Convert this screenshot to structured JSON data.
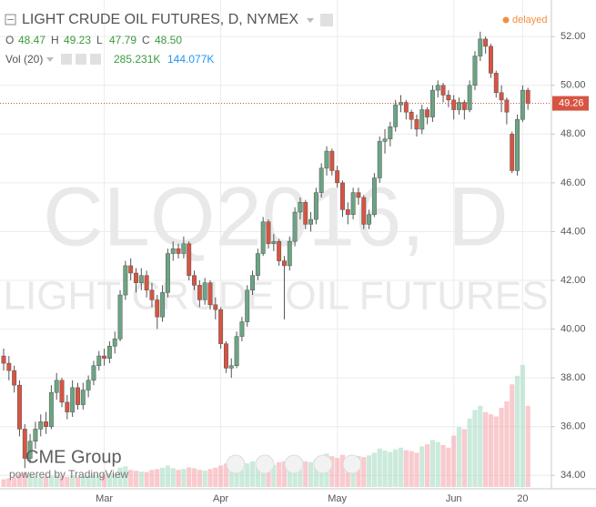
{
  "chart_data": {
    "type": "candlestick",
    "title": "LIGHT CRUDE OIL FUTURES, D, NYMEX",
    "status": "delayed",
    "watermark": [
      "CLQ2016, D",
      "LIGHT CRUDE OIL FUTURES"
    ],
    "branding": [
      "CME Group",
      "powered by TradingView"
    ],
    "legend_labels": [
      "O",
      "H",
      "L",
      "C"
    ],
    "legend_values": [
      48.47,
      49.23,
      47.79,
      48.5
    ],
    "legend_value_labels": [
      "48.47",
      "49.23",
      "47.79",
      "48.50"
    ],
    "volume_label": "Vol (20)",
    "volume_legend_values": [
      285.231,
      144.077
    ],
    "volume_legend_value_labels": [
      "285.231K",
      "144.077K"
    ],
    "last_price": 49.26,
    "up_color": "#6ba583",
    "down_color": "#d75442",
    "grid": true,
    "ylim": [
      33.45,
      53.5
    ],
    "yticks": [
      {
        "value": 34,
        "label": "34.00"
      },
      {
        "value": 36,
        "label": "36.00"
      },
      {
        "value": 38,
        "label": "38.00"
      },
      {
        "value": 40,
        "label": "40.00"
      },
      {
        "value": 42,
        "label": "42.00"
      },
      {
        "value": 44,
        "label": "44.00"
      },
      {
        "value": 46,
        "label": "46.00"
      },
      {
        "value": 48,
        "label": "48.00"
      },
      {
        "value": 50,
        "label": "50.00"
      },
      {
        "value": 52,
        "label": "52.00"
      }
    ],
    "categories": [
      null,
      null,
      null,
      null,
      null,
      null,
      null,
      null,
      null,
      null,
      null,
      null,
      null,
      null,
      null,
      null,
      null,
      null,
      null,
      "Mar",
      null,
      null,
      null,
      null,
      null,
      null,
      null,
      null,
      null,
      null,
      null,
      null,
      null,
      null,
      null,
      null,
      null,
      null,
      null,
      null,
      null,
      "Apr",
      null,
      null,
      null,
      null,
      null,
      null,
      null,
      null,
      null,
      null,
      null,
      null,
      null,
      null,
      null,
      null,
      null,
      null,
      null,
      null,
      null,
      "May",
      null,
      null,
      null,
      null,
      null,
      null,
      null,
      null,
      null,
      null,
      null,
      null,
      null,
      null,
      null,
      null,
      null,
      null,
      null,
      null,
      null,
      "Jun",
      null,
      null,
      null,
      null,
      null,
      null,
      null,
      null,
      null,
      null,
      null,
      null,
      "20",
      null
    ],
    "ohlc": [
      [
        38.9,
        39.2,
        38.3,
        38.6
      ],
      [
        38.6,
        38.9,
        37.9,
        38.3
      ],
      [
        38.3,
        38.5,
        37.4,
        37.7
      ],
      [
        37.7,
        37.9,
        35.6,
        35.9
      ],
      [
        35.9,
        36.1,
        34.3,
        34.7
      ],
      [
        34.7,
        35.7,
        34.5,
        35.4
      ],
      [
        35.4,
        36.2,
        35.1,
        35.9
      ],
      [
        35.9,
        36.5,
        35.6,
        36.2
      ],
      [
        36.2,
        36.6,
        35.7,
        36.0
      ],
      [
        36.0,
        37.7,
        35.9,
        37.4
      ],
      [
        37.4,
        38.2,
        37.1,
        37.9
      ],
      [
        37.9,
        38.0,
        36.8,
        37.0
      ],
      [
        37.0,
        37.3,
        36.3,
        36.6
      ],
      [
        36.6,
        37.9,
        36.4,
        37.6
      ],
      [
        37.6,
        37.8,
        36.7,
        36.9
      ],
      [
        36.9,
        37.8,
        36.7,
        37.5
      ],
      [
        37.5,
        38.1,
        37.2,
        37.9
      ],
      [
        37.9,
        38.7,
        37.7,
        38.5
      ],
      [
        38.5,
        39.1,
        38.3,
        38.9
      ],
      [
        38.9,
        39.2,
        38.5,
        38.8
      ],
      [
        38.8,
        39.5,
        38.6,
        39.3
      ],
      [
        39.3,
        39.9,
        39.0,
        39.6
      ],
      [
        39.6,
        41.6,
        39.5,
        41.4
      ],
      [
        41.4,
        42.8,
        41.2,
        42.6
      ],
      [
        42.6,
        42.9,
        42.0,
        42.3
      ],
      [
        42.3,
        42.5,
        41.5,
        41.9
      ],
      [
        41.9,
        42.5,
        41.6,
        42.2
      ],
      [
        42.2,
        42.4,
        41.3,
        41.6
      ],
      [
        41.6,
        41.9,
        40.9,
        41.2
      ],
      [
        41.2,
        41.4,
        40.0,
        40.5
      ],
      [
        40.5,
        41.8,
        40.3,
        41.5
      ],
      [
        41.5,
        43.3,
        41.3,
        43.1
      ],
      [
        43.1,
        43.6,
        42.8,
        43.3
      ],
      [
        43.3,
        43.5,
        42.9,
        43.1
      ],
      [
        43.1,
        43.8,
        42.9,
        43.5
      ],
      [
        43.5,
        43.6,
        42.0,
        42.2
      ],
      [
        42.2,
        42.4,
        41.6,
        41.8
      ],
      [
        41.8,
        42.0,
        40.9,
        41.2
      ],
      [
        41.2,
        42.1,
        41.0,
        41.9
      ],
      [
        41.9,
        42.0,
        40.8,
        41.0
      ],
      [
        41.0,
        41.3,
        40.4,
        40.8
      ],
      [
        40.8,
        40.9,
        39.2,
        39.4
      ],
      [
        39.4,
        39.5,
        38.2,
        38.4
      ],
      [
        38.4,
        38.8,
        38.0,
        38.5
      ],
      [
        38.5,
        39.9,
        38.4,
        39.7
      ],
      [
        39.7,
        40.5,
        39.5,
        40.3
      ],
      [
        40.3,
        41.8,
        40.1,
        41.6
      ],
      [
        41.6,
        42.4,
        41.4,
        42.2
      ],
      [
        42.2,
        43.3,
        42.0,
        43.1
      ],
      [
        43.1,
        44.6,
        43.0,
        44.4
      ],
      [
        44.4,
        44.5,
        43.3,
        43.5
      ],
      [
        43.5,
        43.9,
        43.2,
        43.6
      ],
      [
        43.6,
        43.7,
        42.6,
        42.8
      ],
      [
        42.8,
        43.0,
        40.4,
        42.6
      ],
      [
        42.6,
        43.8,
        42.4,
        43.6
      ],
      [
        43.6,
        45.0,
        43.4,
        44.8
      ],
      [
        44.8,
        45.4,
        44.5,
        45.2
      ],
      [
        45.2,
        45.3,
        44.1,
        44.3
      ],
      [
        44.3,
        44.8,
        44.0,
        44.5
      ],
      [
        44.5,
        45.8,
        44.3,
        45.6
      ],
      [
        45.6,
        46.8,
        45.4,
        46.6
      ],
      [
        46.6,
        47.5,
        46.3,
        47.3
      ],
      [
        47.3,
        47.4,
        46.3,
        46.5
      ],
      [
        46.5,
        46.7,
        45.8,
        46.0
      ],
      [
        46.0,
        46.1,
        44.6,
        44.9
      ],
      [
        44.9,
        45.2,
        44.3,
        44.7
      ],
      [
        44.7,
        45.8,
        44.5,
        45.6
      ],
      [
        45.6,
        45.8,
        45.1,
        45.4
      ],
      [
        45.4,
        45.5,
        44.1,
        44.3
      ],
      [
        44.3,
        44.9,
        44.1,
        44.7
      ],
      [
        44.7,
        46.4,
        44.6,
        46.2
      ],
      [
        46.2,
        47.9,
        46.0,
        47.7
      ],
      [
        47.7,
        48.2,
        47.2,
        47.8
      ],
      [
        47.8,
        48.5,
        47.5,
        48.3
      ],
      [
        48.3,
        49.4,
        48.1,
        49.2
      ],
      [
        49.2,
        49.6,
        48.9,
        49.3
      ],
      [
        49.3,
        49.4,
        48.6,
        48.9
      ],
      [
        48.9,
        49.0,
        48.2,
        48.6
      ],
      [
        48.6,
        48.8,
        47.9,
        48.2
      ],
      [
        48.2,
        49.2,
        48.0,
        49.0
      ],
      [
        49.0,
        49.1,
        48.4,
        48.7
      ],
      [
        48.7,
        50.0,
        48.5,
        49.8
      ],
      [
        49.8,
        50.2,
        49.5,
        50.0
      ],
      [
        50.0,
        50.1,
        49.3,
        49.6
      ],
      [
        49.6,
        49.8,
        49.1,
        49.4
      ],
      [
        49.4,
        49.6,
        48.6,
        49.0
      ],
      [
        49.0,
        49.5,
        48.8,
        49.3
      ],
      [
        49.3,
        49.4,
        48.6,
        49.0
      ],
      [
        49.0,
        50.2,
        48.9,
        50.0
      ],
      [
        50.0,
        51.4,
        49.8,
        51.2
      ],
      [
        51.2,
        52.2,
        51.0,
        51.9
      ],
      [
        51.9,
        52.0,
        51.3,
        51.6
      ],
      [
        51.6,
        51.7,
        50.3,
        50.5
      ],
      [
        50.5,
        50.6,
        49.5,
        49.7
      ],
      [
        49.7,
        50.0,
        48.9,
        49.4
      ],
      [
        49.4,
        49.5,
        48.4,
        48.9
      ],
      [
        48.0,
        48.1,
        46.4,
        46.5
      ],
      [
        46.5,
        48.8,
        46.3,
        48.6
      ],
      [
        48.6,
        50.0,
        48.5,
        49.8
      ],
      [
        49.8,
        49.9,
        49.0,
        49.26
      ]
    ],
    "volume": [
      18,
      20,
      22,
      30,
      35,
      28,
      25,
      22,
      24,
      26,
      28,
      25,
      24,
      27,
      23,
      25,
      26,
      28,
      27,
      30,
      32,
      30,
      45,
      48,
      40,
      38,
      36,
      35,
      40,
      42,
      45,
      50,
      44,
      40,
      42,
      46,
      44,
      40,
      38,
      42,
      45,
      50,
      55,
      48,
      46,
      50,
      55,
      60,
      58,
      62,
      55,
      52,
      58,
      60,
      56,
      62,
      65,
      60,
      58,
      64,
      70,
      78,
      72,
      68,
      75,
      70,
      66,
      72,
      70,
      74,
      80,
      90,
      85,
      82,
      88,
      92,
      86,
      84,
      80,
      95,
      100,
      110,
      105,
      98,
      92,
      120,
      140,
      135,
      160,
      180,
      190,
      175,
      170,
      165,
      185,
      200,
      240,
      260,
      285.231,
      190
    ]
  }
}
